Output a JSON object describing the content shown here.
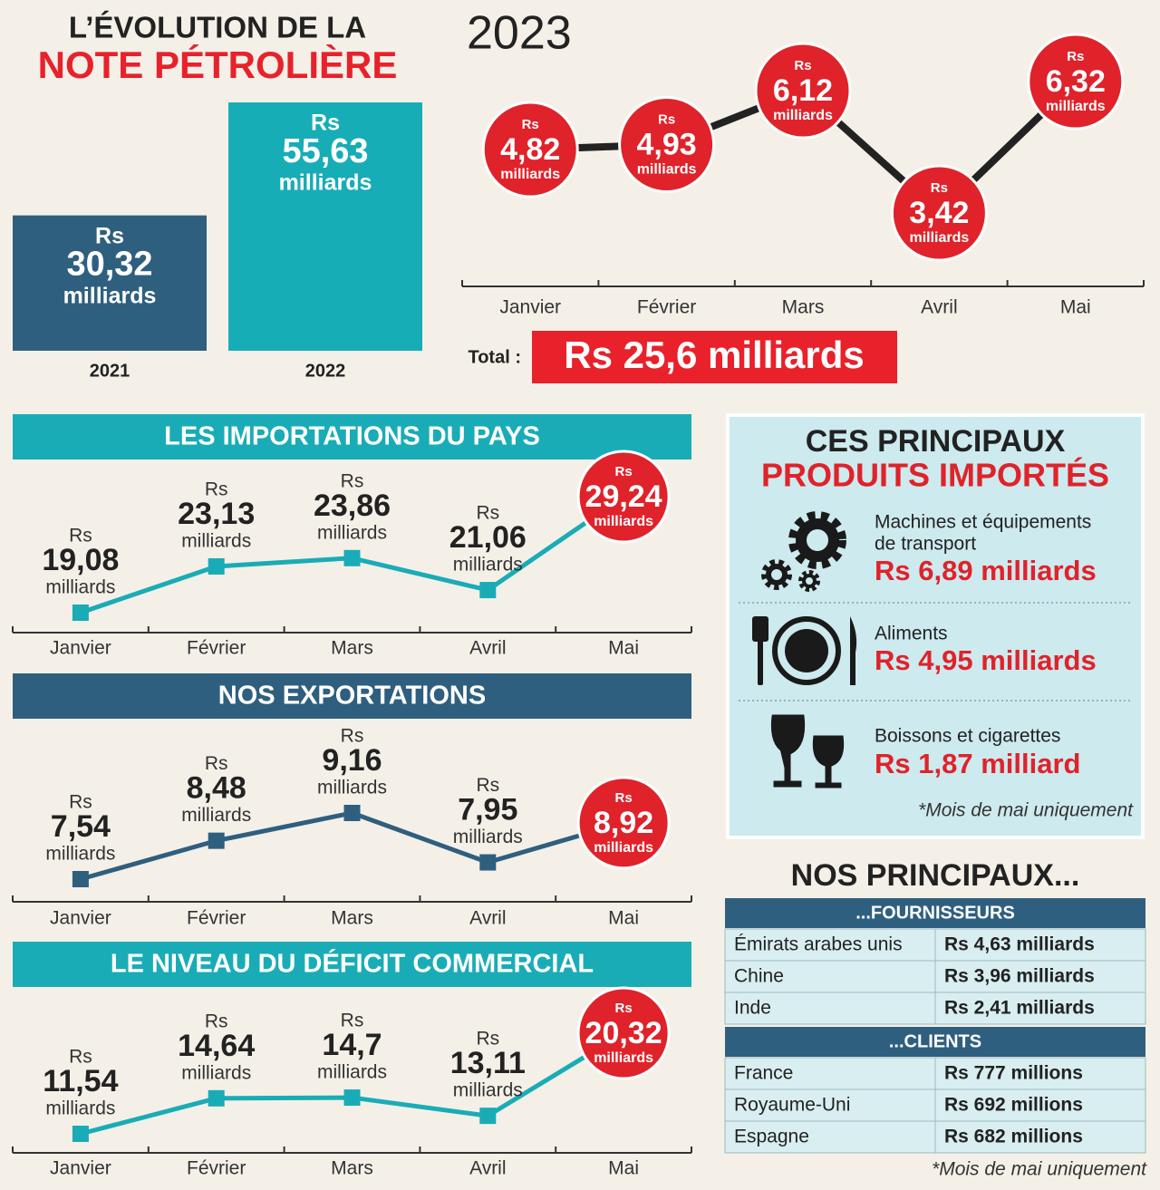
{
  "chart_data": [
    {
      "type": "bar",
      "title": [
        "L’ÉVOLUTION DE LA",
        "NOTE PÉTROLIÈRE"
      ],
      "currency": "Rs",
      "unit": "milliards",
      "categories": [
        "2021",
        "2022"
      ],
      "values": [
        30.32,
        55.63
      ],
      "value_labels": [
        "30,32",
        "55,63"
      ],
      "colors": [
        "#2f5f7f",
        "#17adb7"
      ]
    },
    {
      "type": "line",
      "title": "2023",
      "currency": "Rs",
      "unit": "milliards",
      "categories": [
        "Janvier",
        "Février",
        "Mars",
        "Avril",
        "Mai"
      ],
      "values": [
        4.82,
        4.93,
        6.12,
        3.42,
        6.32
      ],
      "value_labels": [
        "4,82",
        "4,93",
        "6,12",
        "3,42",
        "6,32"
      ],
      "color": "#222222",
      "marker_color": "#e0222a",
      "total_label": "Total :",
      "total": "Rs 25,6 milliards"
    },
    {
      "type": "line",
      "title": "LES IMPORTATIONS DU PAYS",
      "currency": "Rs",
      "unit": "milliards",
      "categories": [
        "Janvier",
        "Février",
        "Mars",
        "Avril",
        "Mai"
      ],
      "values": [
        19.08,
        23.13,
        23.86,
        21.06,
        29.24
      ],
      "value_labels": [
        "19,08",
        "23,13",
        "23,86",
        "21,06",
        "29,24"
      ],
      "color": "#1aacb6",
      "marker_color": "#e0222a"
    },
    {
      "type": "line",
      "title": "NOS EXPORTATIONS",
      "currency": "Rs",
      "unit": "milliards",
      "categories": [
        "Janvier",
        "Février",
        "Mars",
        "Avril",
        "Mai"
      ],
      "values": [
        7.54,
        8.48,
        9.16,
        7.95,
        8.92
      ],
      "value_labels": [
        "7,54",
        "8,48",
        "9,16",
        "7,95",
        "8,92"
      ],
      "color": "#2f5f7f",
      "marker_color": "#e0222a"
    },
    {
      "type": "line",
      "title": "LE NIVEAU DU DÉFICIT COMMERCIAL",
      "currency": "Rs",
      "unit": "milliards",
      "categories": [
        "Janvier",
        "Février",
        "Mars",
        "Avril",
        "Mai"
      ],
      "values": [
        11.54,
        14.64,
        14.7,
        13.11,
        20.32
      ],
      "value_labels": [
        "11,54",
        "14,64",
        "14,7",
        "13,11",
        "20,32"
      ],
      "color": "#1aacb6",
      "marker_color": "#e0222a"
    }
  ],
  "products": {
    "title": [
      "CES PRINCIPAUX",
      "PRODUITS IMPORTÉS"
    ],
    "items": [
      {
        "label": [
          "Machines et équipements",
          "de transport"
        ],
        "value": "Rs 6,89 milliards"
      },
      {
        "label": [
          "Aliments"
        ],
        "value": "Rs 4,95 milliards"
      },
      {
        "label": [
          "Boissons et cigarettes"
        ],
        "value": "Rs 1,87 milliard"
      }
    ],
    "note": "*Mois de mai uniquement"
  },
  "partners": {
    "title": "NOS PRINCIPAUX...",
    "groups": [
      {
        "name": "...FOURNISSEURS",
        "rows": [
          [
            "Émirats arabes unis",
            "Rs 4,63 milliards"
          ],
          [
            "Chine",
            "Rs 3,96 milliards"
          ],
          [
            "Inde",
            "Rs 2,41 milliards"
          ]
        ]
      },
      {
        "name": "...CLIENTS",
        "rows": [
          [
            "France",
            "Rs 777 millions"
          ],
          [
            "Royaume-Uni",
            "Rs 692 millions"
          ],
          [
            "Espagne",
            "Rs 682 millions"
          ]
        ]
      }
    ],
    "note": "*Mois de mai uniquement"
  }
}
